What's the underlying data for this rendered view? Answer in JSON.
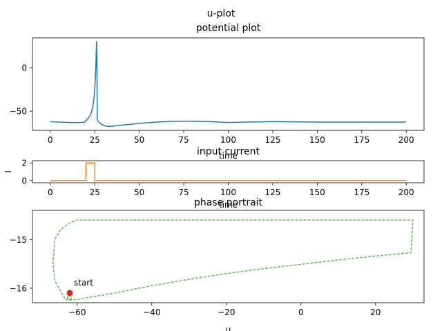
{
  "suptitle": "u-plot",
  "chart_data": [
    {
      "id": "potential",
      "type": "line",
      "title": "potential plot",
      "xlabel": "time",
      "ylabel": "",
      "xlim": [
        -10,
        210
      ],
      "ylim": [
        -72,
        34
      ],
      "xticks": [
        0,
        25,
        50,
        75,
        100,
        125,
        150,
        175,
        200
      ],
      "yticks": [
        0,
        -50
      ],
      "legend": "none",
      "grid": false,
      "series": [
        {
          "color": "#1f77b4",
          "x": [
            0,
            5,
            10,
            15,
            19,
            20,
            21,
            22,
            23,
            24,
            24.6,
            25.2,
            25.6,
            26,
            26.2,
            26.4,
            27,
            28,
            30,
            32,
            34,
            36,
            40,
            45,
            50,
            60,
            70,
            80,
            90,
            100,
            110,
            125,
            150,
            175,
            200
          ],
          "y": [
            -62,
            -62.5,
            -63,
            -63,
            -63,
            -61,
            -59,
            -56,
            -52,
            -44,
            -34,
            -18,
            2,
            30,
            10,
            -60,
            -62,
            -64,
            -66.5,
            -67.5,
            -67.5,
            -67,
            -66,
            -65,
            -64,
            -62.5,
            -61.5,
            -61.5,
            -62,
            -63,
            -62.5,
            -62,
            -62.5,
            -62.5,
            -62.5
          ]
        }
      ]
    },
    {
      "id": "current",
      "type": "line",
      "title": "input current",
      "xlabel": "time",
      "ylabel": "I",
      "xlim": [
        -10,
        210
      ],
      "ylim": [
        -0.25,
        2.25
      ],
      "xticks": [
        0,
        25,
        50,
        75,
        100,
        125,
        150,
        175,
        200
      ],
      "yticks": [
        0,
        2
      ],
      "legend": "none",
      "grid": false,
      "series": [
        {
          "color": "#ff7f0e",
          "x": [
            0,
            20,
            20,
            25,
            25,
            200
          ],
          "y": [
            0,
            0,
            2,
            2,
            0,
            0
          ]
        }
      ]
    },
    {
      "id": "phase",
      "type": "line",
      "title": "phase portrait",
      "xlabel": "u",
      "ylabel": "",
      "xlim": [
        -72,
        33
      ],
      "ylim": [
        -16.3,
        -14.4
      ],
      "xticks": [
        -60,
        -40,
        -20,
        0,
        20
      ],
      "yticks": [
        -15,
        -16
      ],
      "legend": "none",
      "grid": false,
      "series": [
        {
          "color": "#5cb85c",
          "linestyle": "dashed",
          "x": [
            -62,
            -61.5,
            -61.7,
            -62.4,
            -62.6,
            -62.2,
            -61.2,
            -59,
            -50,
            -40,
            -30,
            -20,
            -10,
            0,
            10,
            20,
            29.5,
            30,
            -10,
            -60,
            -62,
            -64.5,
            -66,
            -66.5,
            -66,
            -64.5,
            -63.8,
            -63.2,
            -62.9,
            -62.7,
            -62.6,
            -62.5
          ],
          "y": [
            -16.2,
            -16.22,
            -16.17,
            -16.15,
            -16.2,
            -16.24,
            -16.24,
            -16.22,
            -16.1,
            -15.95,
            -15.82,
            -15.7,
            -15.6,
            -15.51,
            -15.42,
            -15.34,
            -15.27,
            -14.6,
            -14.6,
            -14.6,
            -14.66,
            -14.8,
            -15.0,
            -15.5,
            -15.85,
            -16.05,
            -16.15,
            -16.22,
            -16.24,
            -16.24,
            -16.22,
            -16.2
          ]
        }
      ],
      "points": [
        {
          "x": -62,
          "y": -16.1,
          "color": "#d62728",
          "label": "start"
        }
      ]
    }
  ]
}
